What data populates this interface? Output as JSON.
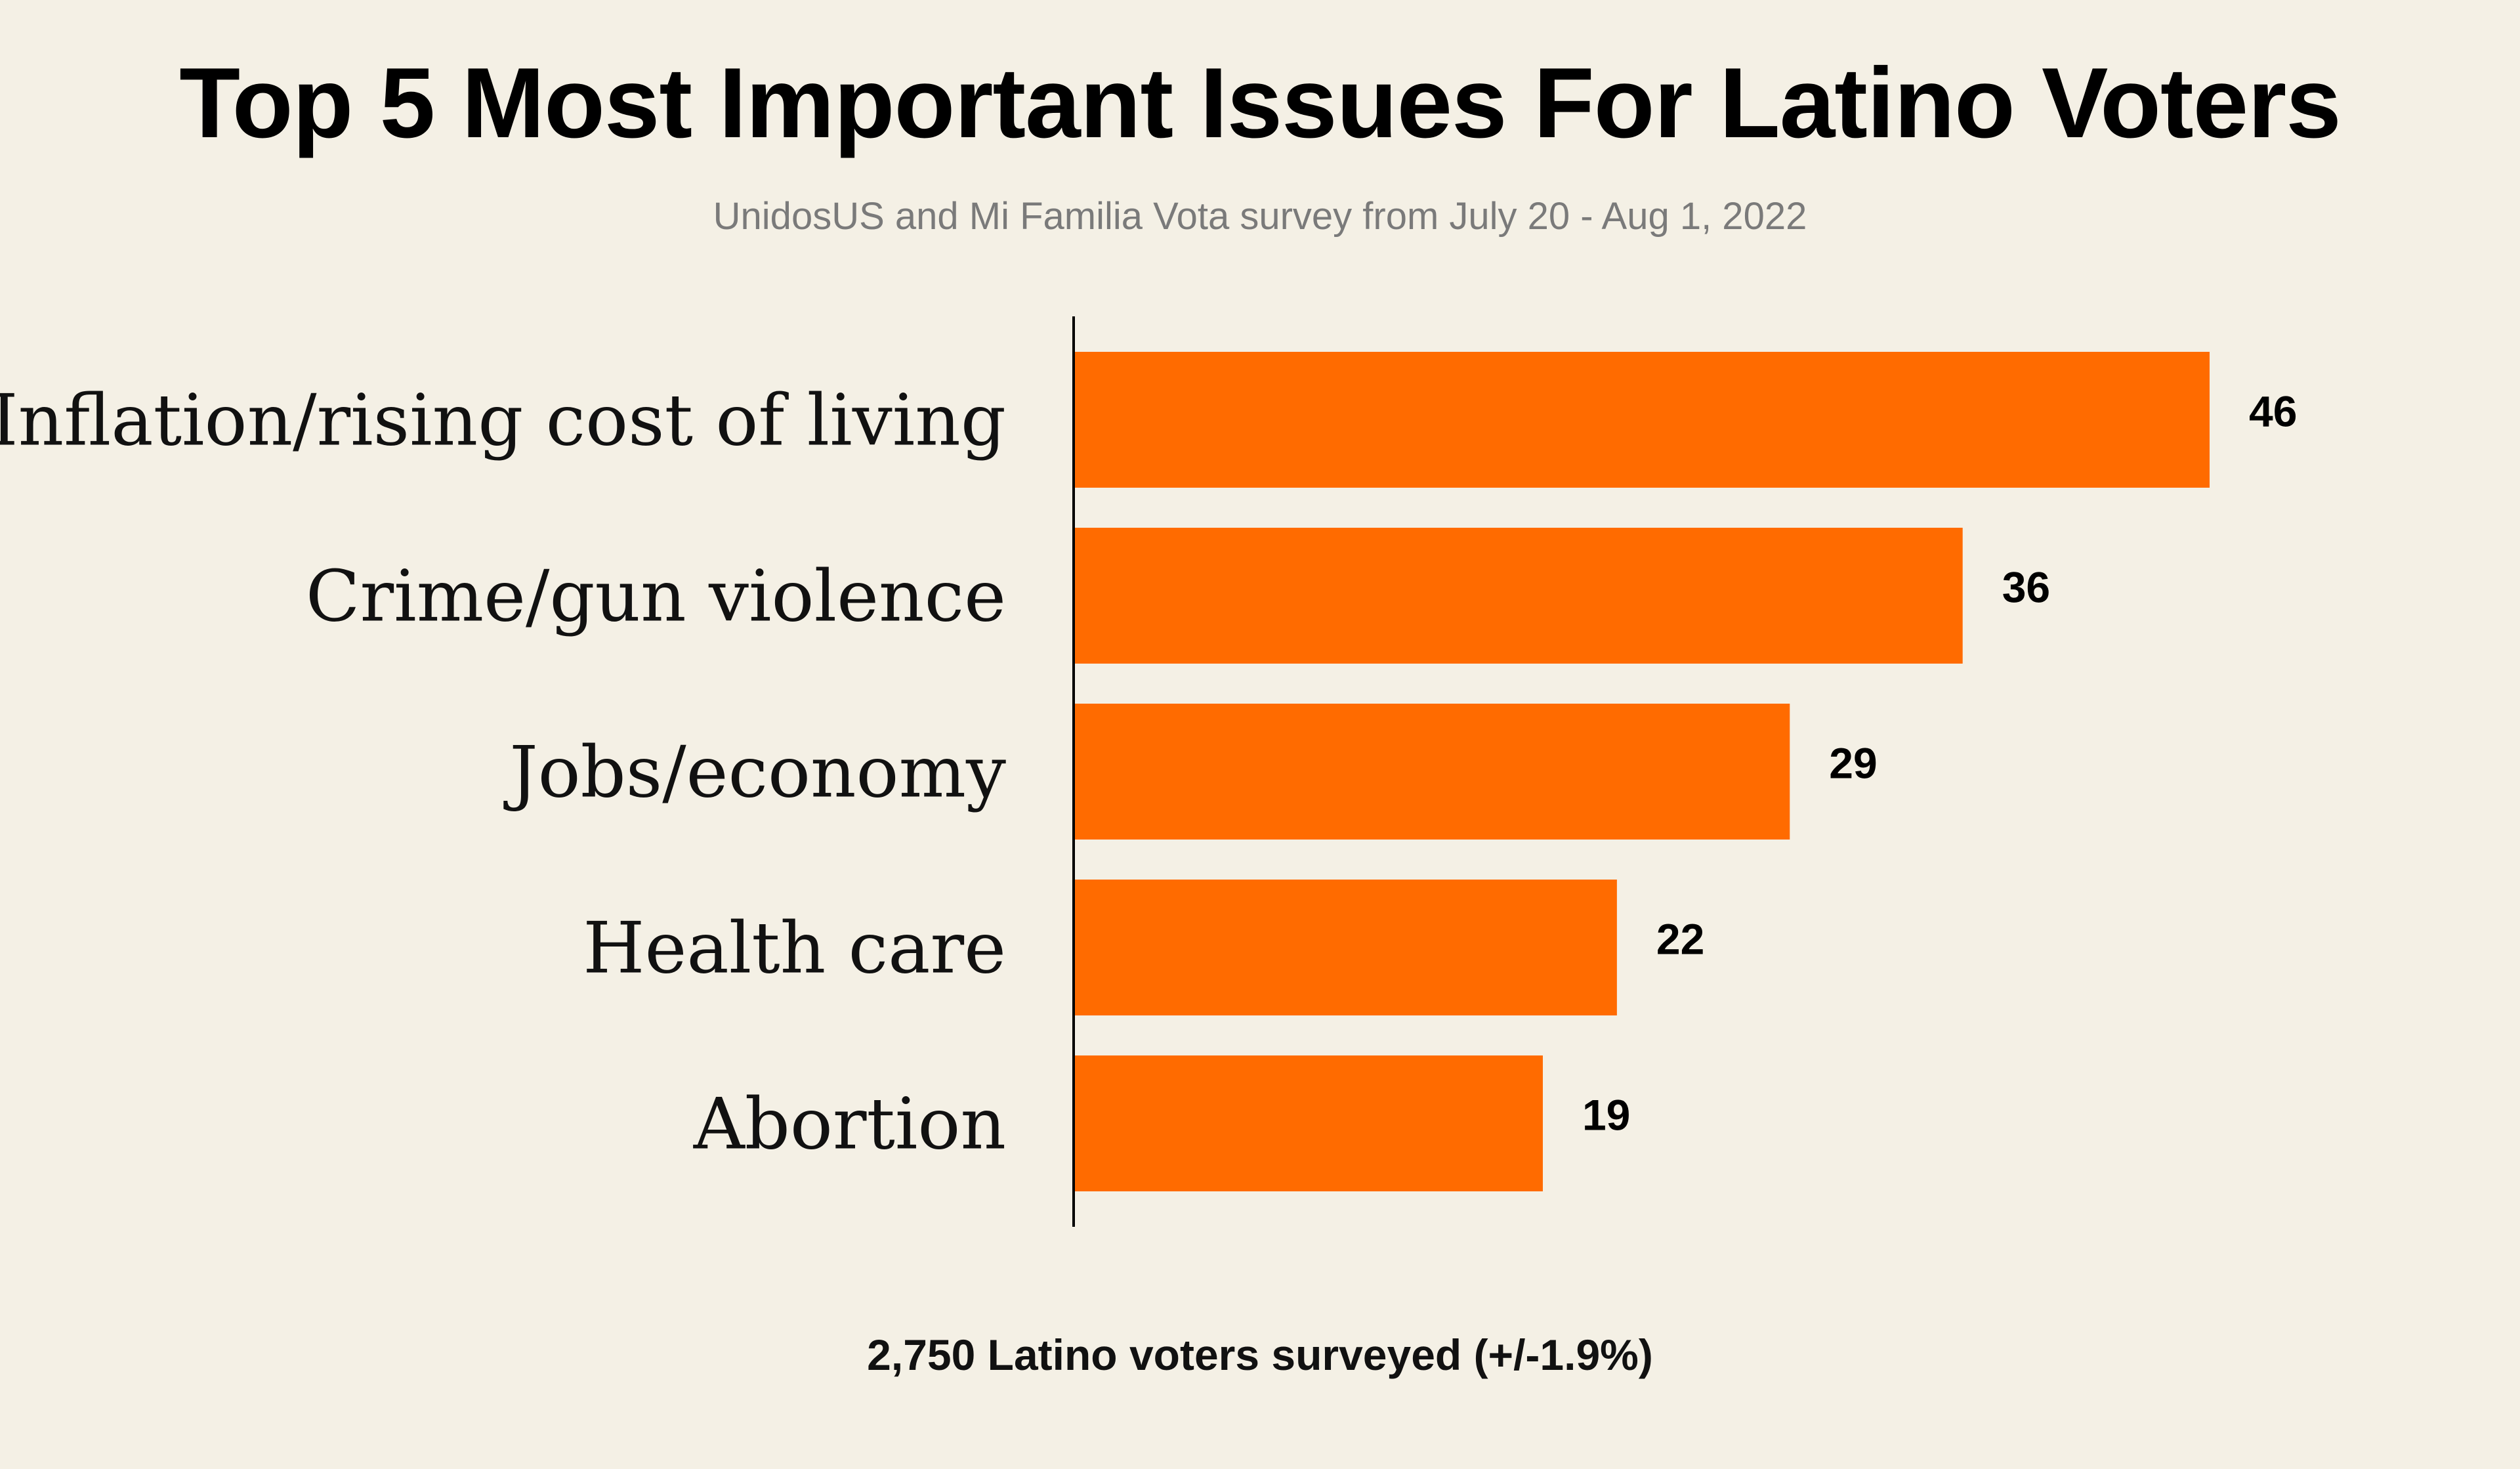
{
  "chart_data": {
    "type": "bar",
    "orientation": "horizontal",
    "title": "Top 5 Most Important Issues For Latino Voters",
    "subtitle": "UnidosUS and Mi Familia Vota survey from July 20 - Aug 1, 2022",
    "categories": [
      "Inflation/rising cost of living",
      "Crime/gun violence",
      "Jobs/economy",
      "Health care",
      "Abortion"
    ],
    "values": [
      46,
      36,
      29,
      22,
      19
    ],
    "xlim": [
      0,
      50
    ],
    "grid": false,
    "note": "2,750 Latino voters surveyed (+/-1.9%)",
    "colors": {
      "bar": "#ff6b00",
      "background": "#f4f0e5",
      "axis": "#000000"
    }
  }
}
